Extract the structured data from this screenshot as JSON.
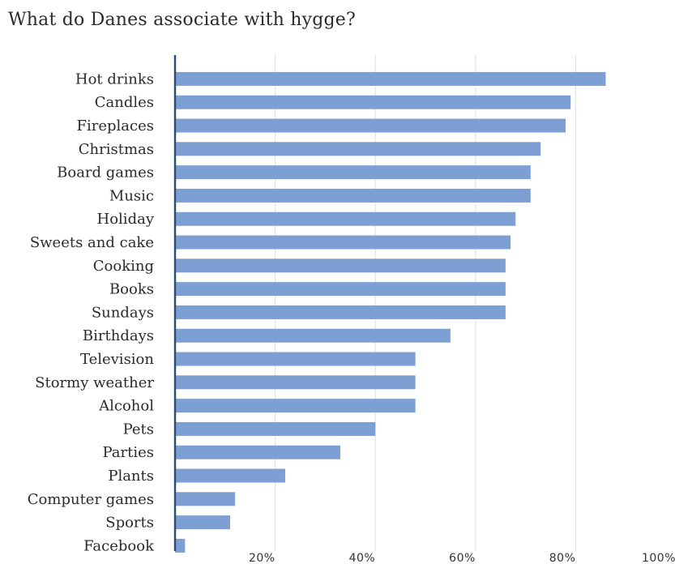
{
  "chart_data": {
    "type": "bar",
    "orientation": "horizontal",
    "title": "What do Danes associate with hygge?",
    "xlabel": "",
    "ylabel": "",
    "categories": [
      "Hot drinks",
      "Candles",
      "Fireplaces",
      "Christmas",
      "Board games",
      "Music",
      "Holiday",
      "Sweets and cake",
      "Cooking",
      "Books",
      "Sundays",
      "Birthdays",
      "Television",
      "Stormy weather",
      "Alcohol",
      "Pets",
      "Parties",
      "Plants",
      "Computer games",
      "Sports",
      "Facebook"
    ],
    "values": [
      86,
      79,
      78,
      73,
      71,
      71,
      68,
      67,
      66,
      66,
      66,
      55,
      48,
      48,
      48,
      40,
      33,
      22,
      12,
      11,
      2
    ],
    "xlim": [
      0,
      100
    ],
    "x_ticks": [
      20,
      40,
      60,
      80,
      100
    ],
    "x_tick_labels": [
      "20%",
      "40%",
      "60%",
      "80%",
      "100%"
    ],
    "grid": true,
    "bar_color": "#7e9fd3",
    "axis_color": "#2f4f7a"
  }
}
